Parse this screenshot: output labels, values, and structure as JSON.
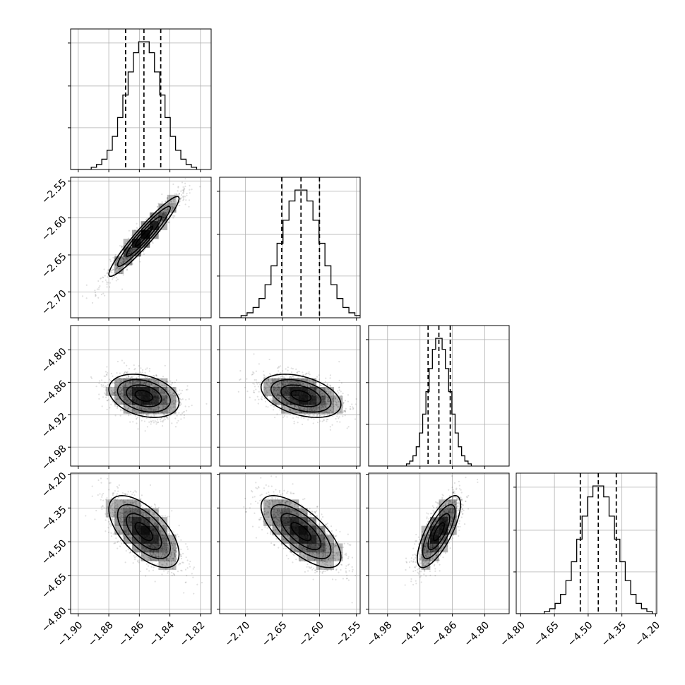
{
  "chart_data": {
    "type": "corner",
    "parameters": [
      {
        "mean": -1.857,
        "std": 0.0115,
        "range": [
          -1.905,
          -1.813
        ],
        "ticks": [
          "-1.90",
          "-1.88",
          "-1.86",
          "-1.84",
          "-1.82"
        ],
        "quantiles": [
          -1.869,
          -1.857,
          -1.846
        ]
      },
      {
        "mean": -2.625,
        "std": 0.027,
        "range": [
          -2.735,
          -2.545
        ],
        "ticks": [
          "-2.70",
          "-2.65",
          "-2.60",
          "-2.55"
        ],
        "quantiles": [
          -2.651,
          -2.625,
          -2.6
        ]
      },
      {
        "mean": -4.885,
        "std": 0.02,
        "range": [
          -5.015,
          -4.755
        ],
        "ticks": [
          "-4.98",
          "-4.92",
          "-4.86",
          "-4.80"
        ],
        "quantiles": [
          -4.905,
          -4.885,
          -4.864
        ]
      },
      {
        "mean": -4.455,
        "std": 0.08,
        "range": [
          -4.82,
          -4.195
        ],
        "ticks": [
          "-4.80",
          "-4.65",
          "-4.50",
          "-4.35",
          "-4.20"
        ],
        "quantiles": [
          -4.535,
          -4.455,
          -4.375
        ]
      }
    ],
    "correlations": [
      [
        1.0,
        0.95,
        -0.3,
        -0.62
      ],
      [
        0.95,
        1.0,
        -0.4,
        -0.7
      ],
      [
        -0.3,
        -0.4,
        1.0,
        0.75
      ],
      [
        -0.62,
        -0.7,
        0.75,
        1.0
      ]
    ],
    "histogram_bins": 20,
    "contour_levels_sigma": [
      0.5,
      1.0,
      1.5,
      2.0
    ],
    "grid": true,
    "colors": {
      "ink": "#000000",
      "grid": "#b0b0b0",
      "scatter": "#000000"
    }
  }
}
